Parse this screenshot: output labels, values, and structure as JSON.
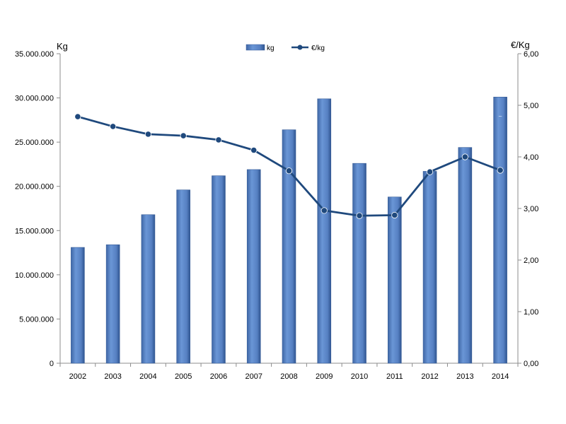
{
  "chart_data": {
    "type": "bar",
    "categories": [
      "2002",
      "2003",
      "2004",
      "2005",
      "2006",
      "2007",
      "2008",
      "2009",
      "2010",
      "2011",
      "2012",
      "2013",
      "2014"
    ],
    "series": [
      {
        "name": "kg",
        "type": "bar",
        "axis": "left",
        "color": "#5b86c4",
        "values": [
          13100000,
          13400000,
          16800000,
          19600000,
          21200000,
          21900000,
          26400000,
          29900000,
          22600000,
          18800000,
          21700000,
          24400000,
          30100000
        ]
      },
      {
        "name": "€/kg",
        "type": "line",
        "axis": "right",
        "color": "#1f497d",
        "values": [
          4.78,
          4.59,
          4.44,
          4.41,
          4.33,
          4.13,
          3.73,
          2.96,
          2.86,
          2.87,
          3.71,
          4.0,
          3.74
        ]
      }
    ],
    "ylabel_left": "Kg",
    "ylabel_right": "€/Kg",
    "ylim_left": [
      0,
      35000000
    ],
    "ylim_right": [
      0,
      6
    ],
    "yticks_left": [
      "0",
      "5.000.000",
      "10.000.000",
      "15.000.000",
      "20.000.000",
      "25.000.000",
      "30.000.000",
      "35.000.000"
    ],
    "yticks_right": [
      "0,00",
      "1,00",
      "2,00",
      "3,00",
      "4,00",
      "5,00",
      "6,00"
    ],
    "grid": false,
    "legend_position": "top-center",
    "annotation": "~"
  }
}
